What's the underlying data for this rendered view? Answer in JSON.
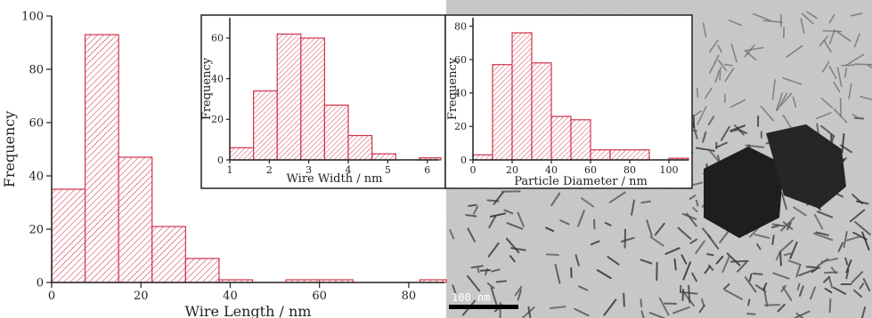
{
  "colors": {
    "bar": "#d0324a",
    "axis": "#222222",
    "tem_bg": "#c9c9c9"
  },
  "chart_data": [
    {
      "id": "main",
      "type": "bar",
      "title": "",
      "xlabel": "Wire Length / nm",
      "ylabel": "Frequency",
      "xlim": [
        0,
        88
      ],
      "ylim": [
        0,
        100
      ],
      "xticks": [
        0,
        20,
        40,
        60,
        80
      ],
      "yticks": [
        0,
        20,
        40,
        60,
        80,
        100
      ],
      "bins": [
        {
          "x0": 0,
          "x1": 7.5,
          "value": 35
        },
        {
          "x0": 7.5,
          "x1": 15,
          "value": 93
        },
        {
          "x0": 15,
          "x1": 22.5,
          "value": 47
        },
        {
          "x0": 22.5,
          "x1": 30,
          "value": 21
        },
        {
          "x0": 30,
          "x1": 37.5,
          "value": 9
        },
        {
          "x0": 37.5,
          "x1": 45,
          "value": 1
        },
        {
          "x0": 52.5,
          "x1": 60,
          "value": 1
        },
        {
          "x0": 60,
          "x1": 67.5,
          "value": 1
        },
        {
          "x0": 82.5,
          "x1": 90,
          "value": 1
        }
      ]
    },
    {
      "id": "inset1",
      "type": "bar",
      "title": "",
      "xlabel": "Wire Width / nm",
      "ylabel": "Frequency",
      "xlim": [
        1,
        6.3
      ],
      "ylim": [
        0,
        70
      ],
      "xticks": [
        1,
        2,
        3,
        4,
        5,
        6
      ],
      "yticks": [
        0,
        20,
        40,
        60
      ],
      "bins": [
        {
          "x0": 1.0,
          "x1": 1.6,
          "value": 6
        },
        {
          "x0": 1.6,
          "x1": 2.2,
          "value": 34
        },
        {
          "x0": 2.2,
          "x1": 2.8,
          "value": 62
        },
        {
          "x0": 2.8,
          "x1": 3.4,
          "value": 60
        },
        {
          "x0": 3.4,
          "x1": 4.0,
          "value": 27
        },
        {
          "x0": 4.0,
          "x1": 4.6,
          "value": 12
        },
        {
          "x0": 4.6,
          "x1": 5.2,
          "value": 3
        },
        {
          "x0": 5.2,
          "x1": 5.8,
          "value": 0
        },
        {
          "x0": 5.8,
          "x1": 6.4,
          "value": 1
        }
      ]
    },
    {
      "id": "inset2",
      "type": "bar",
      "title": "",
      "xlabel": "Particle Diameter / nm",
      "ylabel": "Frequency",
      "xlim": [
        0,
        110
      ],
      "ylim": [
        0,
        85
      ],
      "xticks": [
        0,
        20,
        40,
        60,
        80,
        100
      ],
      "yticks": [
        0,
        20,
        40,
        60,
        80
      ],
      "bins": [
        {
          "x0": 0,
          "x1": 10,
          "value": 3
        },
        {
          "x0": 10,
          "x1": 20,
          "value": 57
        },
        {
          "x0": 20,
          "x1": 30,
          "value": 76
        },
        {
          "x0": 30,
          "x1": 40,
          "value": 58
        },
        {
          "x0": 40,
          "x1": 50,
          "value": 26
        },
        {
          "x0": 50,
          "x1": 60,
          "value": 24
        },
        {
          "x0": 60,
          "x1": 70,
          "value": 6
        },
        {
          "x0": 70,
          "x1": 90,
          "value": 6
        },
        {
          "x0": 100,
          "x1": 110,
          "value": 1
        }
      ]
    }
  ],
  "tem_image": {
    "scale_bar_label": "100 nm"
  }
}
